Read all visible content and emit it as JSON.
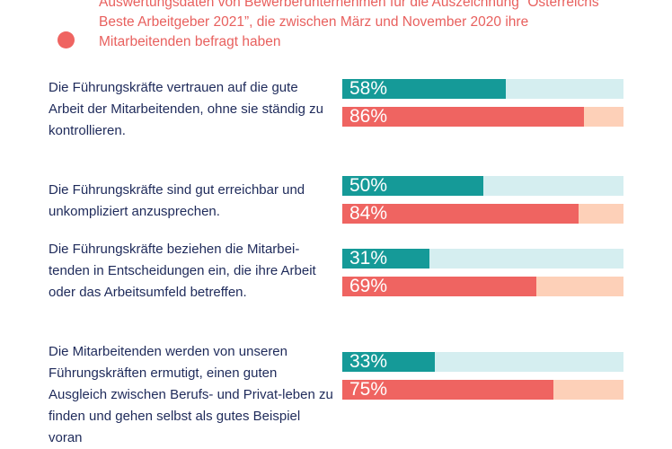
{
  "intro": {
    "text": "Auswertungsdaten von Bewerberunternehmen für die Auszeichnung “Österreichs Beste Arbeitgeber 2021”, die zwischen März und November 2020 ihre Mitarbeitenden befragt haben",
    "marker_color": "#ef6461"
  },
  "chart_data": {
    "type": "bar",
    "orientation": "horizontal",
    "xlim": [
      0,
      100
    ],
    "categories": [
      "Die Führungskräfte vertrauen auf die gute Arbeit der Mitarbeitenden, ohne sie ständig zu kontrollieren.",
      "Die Führungskräfte sind gut erreichbar und unkompliziert anzusprechen.",
      "Die Führungskräfte beziehen die Mitarbei-tenden in Entscheidungen ein, die ihre Arbeit oder das Arbeitsumfeld betreffen.",
      "Die Mitarbeitenden werden von unseren Führungskräften ermutigt, einen guten Ausgleich zwischen Berufs- und Privat-leben zu finden und gehen selbst als gutes Beispiel voran"
    ],
    "series": [
      {
        "values": [
          58,
          50,
          31,
          33
        ],
        "labels": [
          "58%",
          "50%",
          "31%",
          "33%"
        ],
        "color": "#159a98",
        "track_color": "#d5eef0"
      },
      {
        "values": [
          86,
          84,
          69,
          75
        ],
        "labels": [
          "86%",
          "84%",
          "69%",
          "75%"
        ],
        "color": "#ef6461",
        "track_color": "#fdd0b8"
      }
    ]
  }
}
